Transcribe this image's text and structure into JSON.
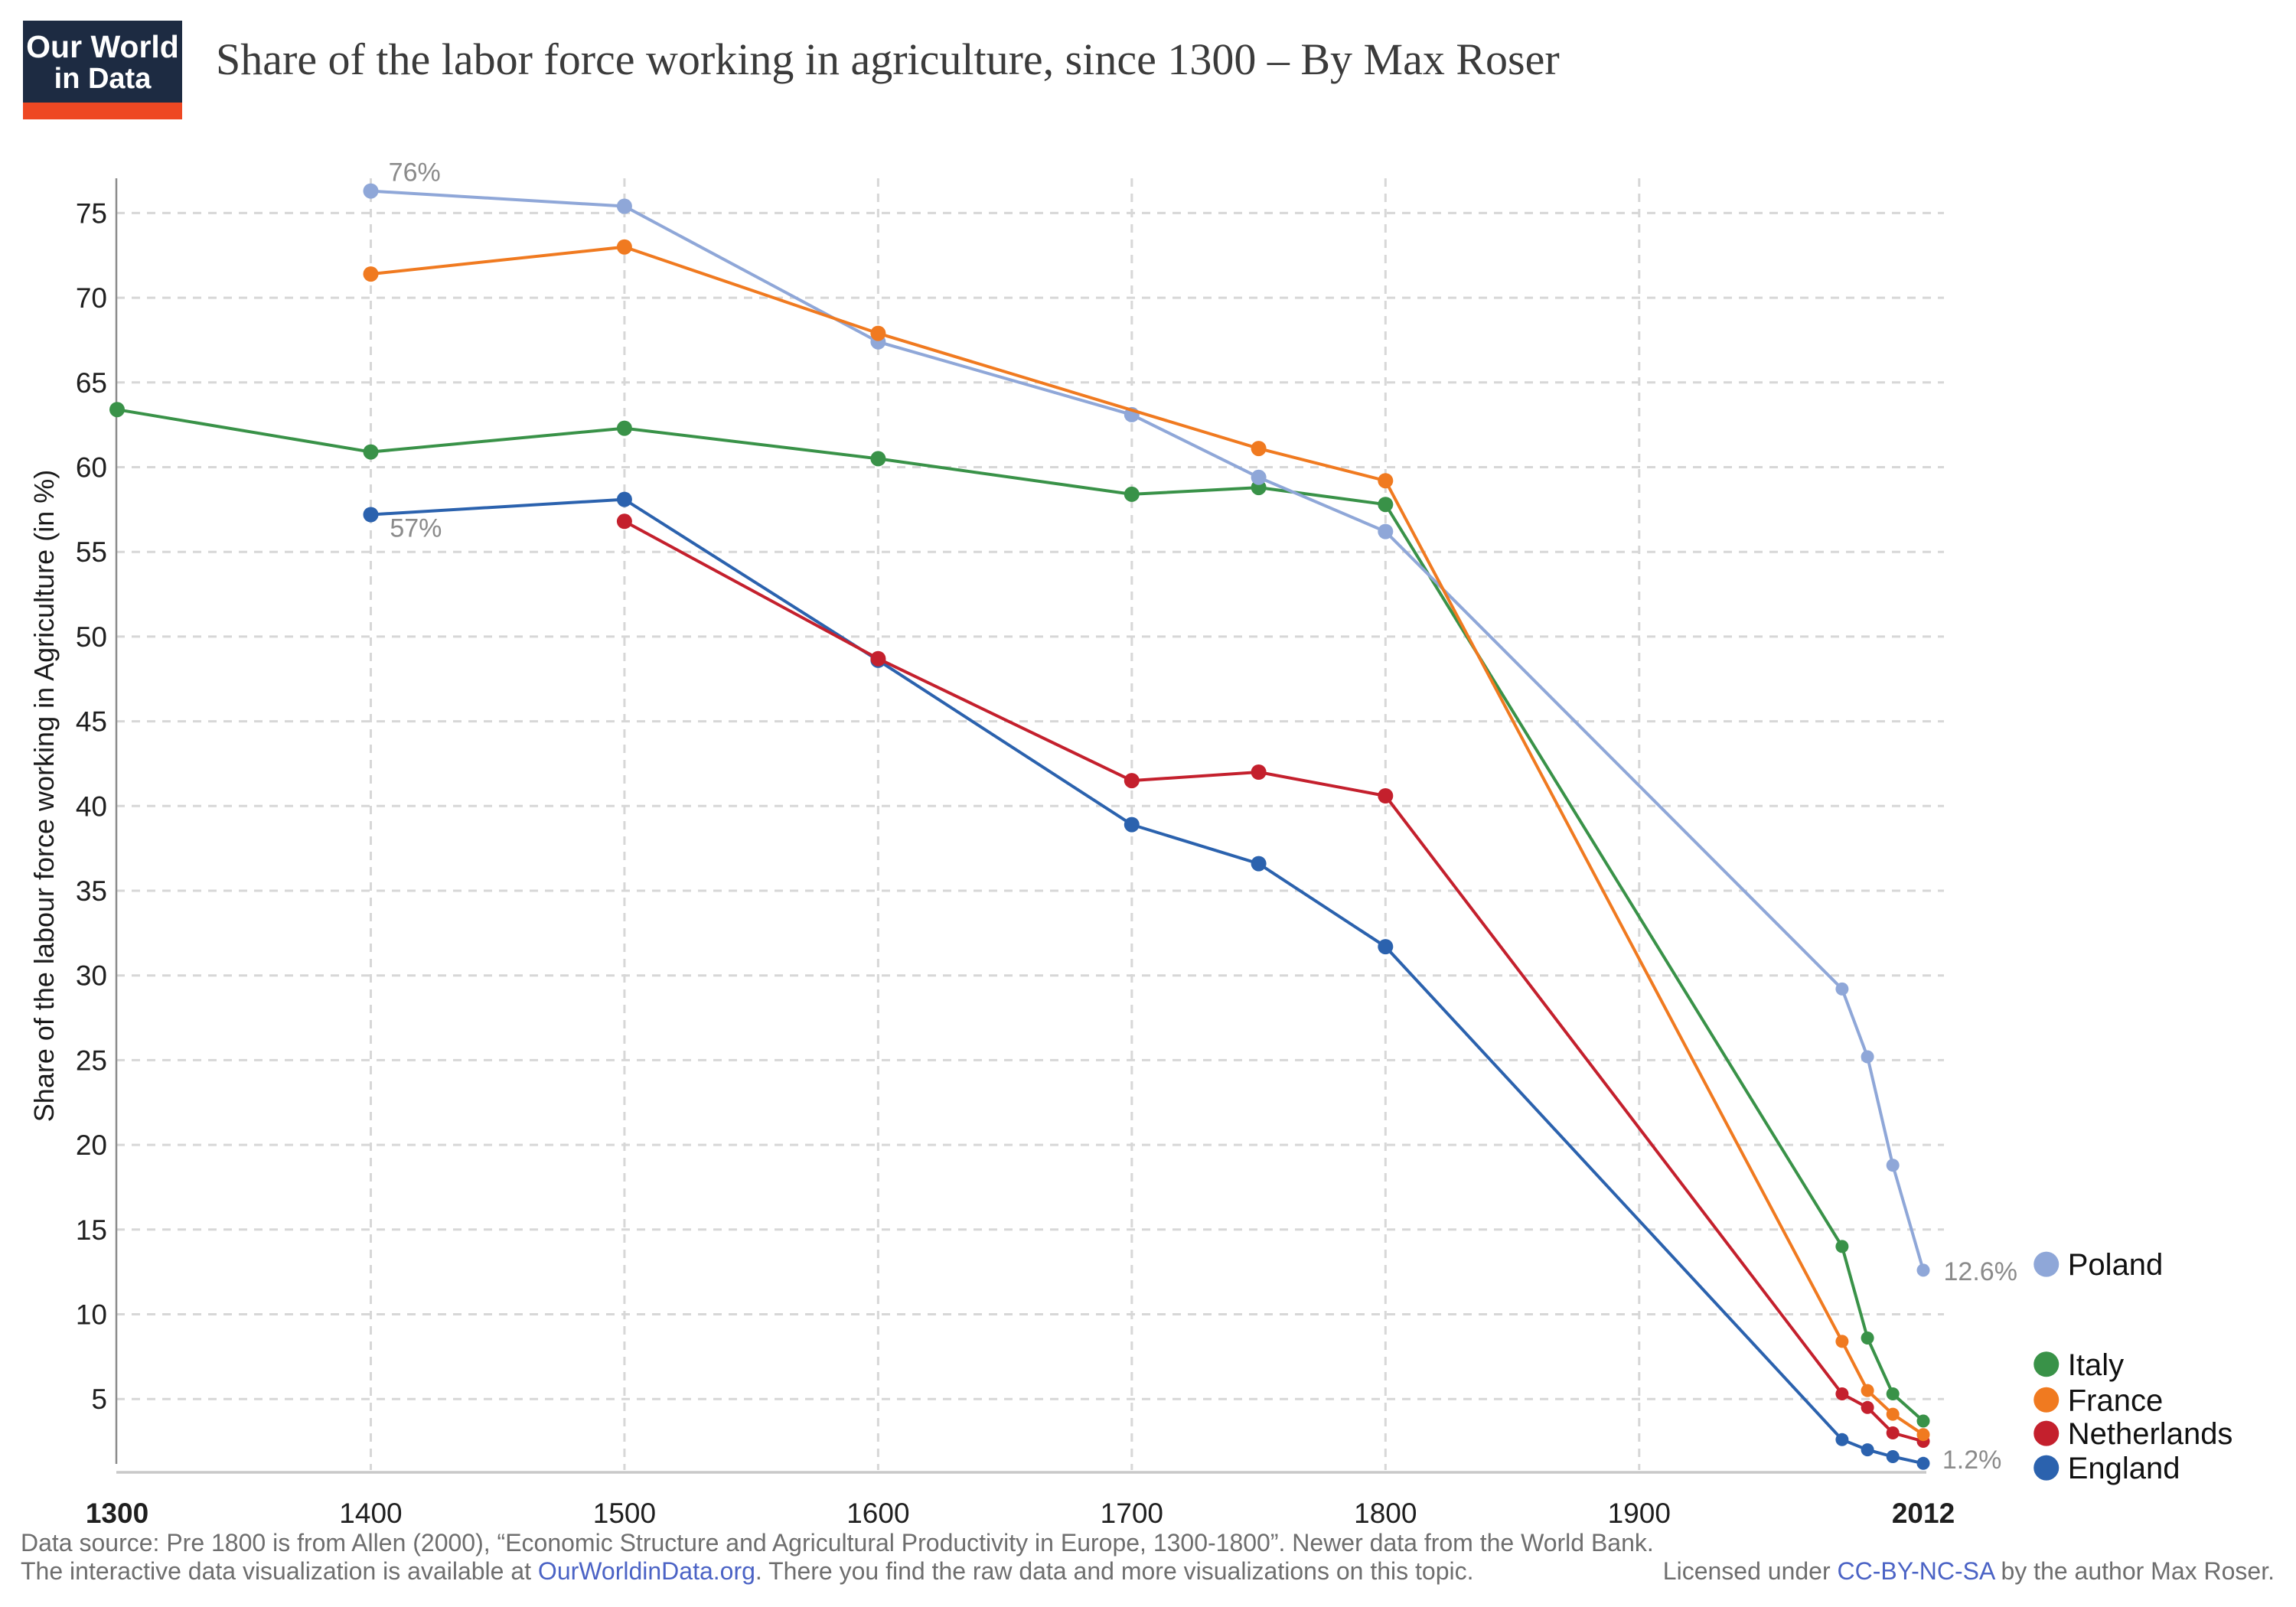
{
  "logo": {
    "line1": "Our World",
    "line2": "in Data",
    "navy_color": "#1d2b42",
    "accent_color": "#ee4823"
  },
  "header": {
    "title": "Share of the labor force working in agriculture, since 1300 – By Max Roser"
  },
  "chart_data": {
    "type": "line",
    "title": "Share of the labor force working in agriculture, since 1300",
    "xlabel": "",
    "ylabel": "Share of the labour force working in Agriculture (in %)",
    "xlim": [
      1300,
      2012
    ],
    "ylim": [
      0.65,
      77.05
    ],
    "grid": true,
    "legend_position": "right-bottom",
    "x_gridlines": [
      1400,
      1500,
      1600,
      1700,
      1800,
      1900
    ],
    "x_ticks": [
      {
        "year": 1300,
        "label": "1300",
        "bold": true
      },
      {
        "year": 1400,
        "label": "1400",
        "bold": false
      },
      {
        "year": 1500,
        "label": "1500",
        "bold": false
      },
      {
        "year": 1600,
        "label": "1600",
        "bold": false
      },
      {
        "year": 1700,
        "label": "1700",
        "bold": false
      },
      {
        "year": 1800,
        "label": "1800",
        "bold": false
      },
      {
        "year": 1900,
        "label": "1900",
        "bold": false
      },
      {
        "year": 2012,
        "label": "2012",
        "bold": true
      }
    ],
    "y_ticks": [
      5,
      10,
      15,
      20,
      25,
      30,
      35,
      40,
      45,
      50,
      55,
      60,
      65,
      70,
      75
    ],
    "series": [
      {
        "name": "Italy",
        "color": "#399248",
        "points": [
          [
            1300,
            63.4
          ],
          [
            1400,
            60.9
          ],
          [
            1500,
            62.3
          ],
          [
            1600,
            60.5
          ],
          [
            1700,
            58.4
          ],
          [
            1750,
            58.8
          ],
          [
            1800,
            57.8
          ],
          [
            1980,
            14.0
          ],
          [
            1990,
            8.6
          ],
          [
            2000,
            5.3
          ],
          [
            2012,
            3.7
          ]
        ]
      },
      {
        "name": "England",
        "color": "#2b62ae",
        "points": [
          [
            1400,
            57.2
          ],
          [
            1500,
            58.1
          ],
          [
            1600,
            48.6
          ],
          [
            1700,
            38.9
          ],
          [
            1750,
            36.6
          ],
          [
            1800,
            31.7
          ],
          [
            1980,
            2.6
          ],
          [
            1990,
            2.0
          ],
          [
            2000,
            1.6
          ],
          [
            2012,
            1.2
          ]
        ]
      },
      {
        "name": "Netherlands",
        "color": "#c4202d",
        "points": [
          [
            1500,
            56.8
          ],
          [
            1600,
            48.7
          ],
          [
            1700,
            41.5
          ],
          [
            1750,
            42.0
          ],
          [
            1800,
            40.6
          ],
          [
            1980,
            5.3
          ],
          [
            1990,
            4.5
          ],
          [
            2000,
            3.0
          ],
          [
            2012,
            2.5
          ]
        ]
      },
      {
        "name": "Poland",
        "color": "#8fa7d8",
        "points": [
          [
            1400,
            76.3
          ],
          [
            1500,
            75.4
          ],
          [
            1600,
            67.4
          ],
          [
            1700,
            63.1
          ],
          [
            1750,
            59.4
          ],
          [
            1800,
            56.2
          ],
          [
            1980,
            29.2
          ],
          [
            1990,
            25.2
          ],
          [
            2000,
            18.8
          ],
          [
            2012,
            12.6
          ]
        ]
      },
      {
        "name": "France",
        "color": "#f07a20",
        "points": [
          [
            1400,
            71.4
          ],
          [
            1500,
            73.0
          ],
          [
            1600,
            67.9
          ],
          [
            1750,
            61.1
          ],
          [
            1800,
            59.2
          ],
          [
            1980,
            8.4
          ],
          [
            1990,
            5.5
          ],
          [
            2000,
            4.1
          ],
          [
            2012,
            2.9
          ]
        ]
      }
    ],
    "annotations": [
      {
        "text": "76%",
        "year": 1407,
        "value": 76.9,
        "anchor": "start"
      },
      {
        "text": "57%",
        "year": 1407.5,
        "value": 55.9,
        "anchor": "start"
      },
      {
        "text": "12.6%",
        "year": 2020,
        "value": 12.0,
        "anchor": "start"
      },
      {
        "text": "1.2%",
        "year": 2019.5,
        "value": 0.9,
        "anchor": "start"
      }
    ],
    "legend": {
      "x_year": 2060.5,
      "items": [
        {
          "series": "Poland",
          "v": 12.95
        },
        {
          "series": "Italy",
          "v": 7.05
        },
        {
          "series": "France",
          "v": 4.95
        },
        {
          "series": "Netherlands",
          "v": 2.97
        },
        {
          "series": "England",
          "v": 0.94
        }
      ]
    }
  },
  "footer": {
    "line1": "Data source: Pre 1800 is from Allen (2000), “Economic Structure and Agricultural Productivity in Europe, 1300-1800”. Newer data from the World Bank.",
    "line2_prefix": "The interactive data visualization is available at ",
    "line2_link": "OurWorldinData.org",
    "line2_suffix": ". There you find the raw data and more visualizations on this topic.",
    "license_prefix": "Licensed under ",
    "license_link": "CC-BY-NC-SA",
    "license_suffix": " by the author Max Roser."
  }
}
